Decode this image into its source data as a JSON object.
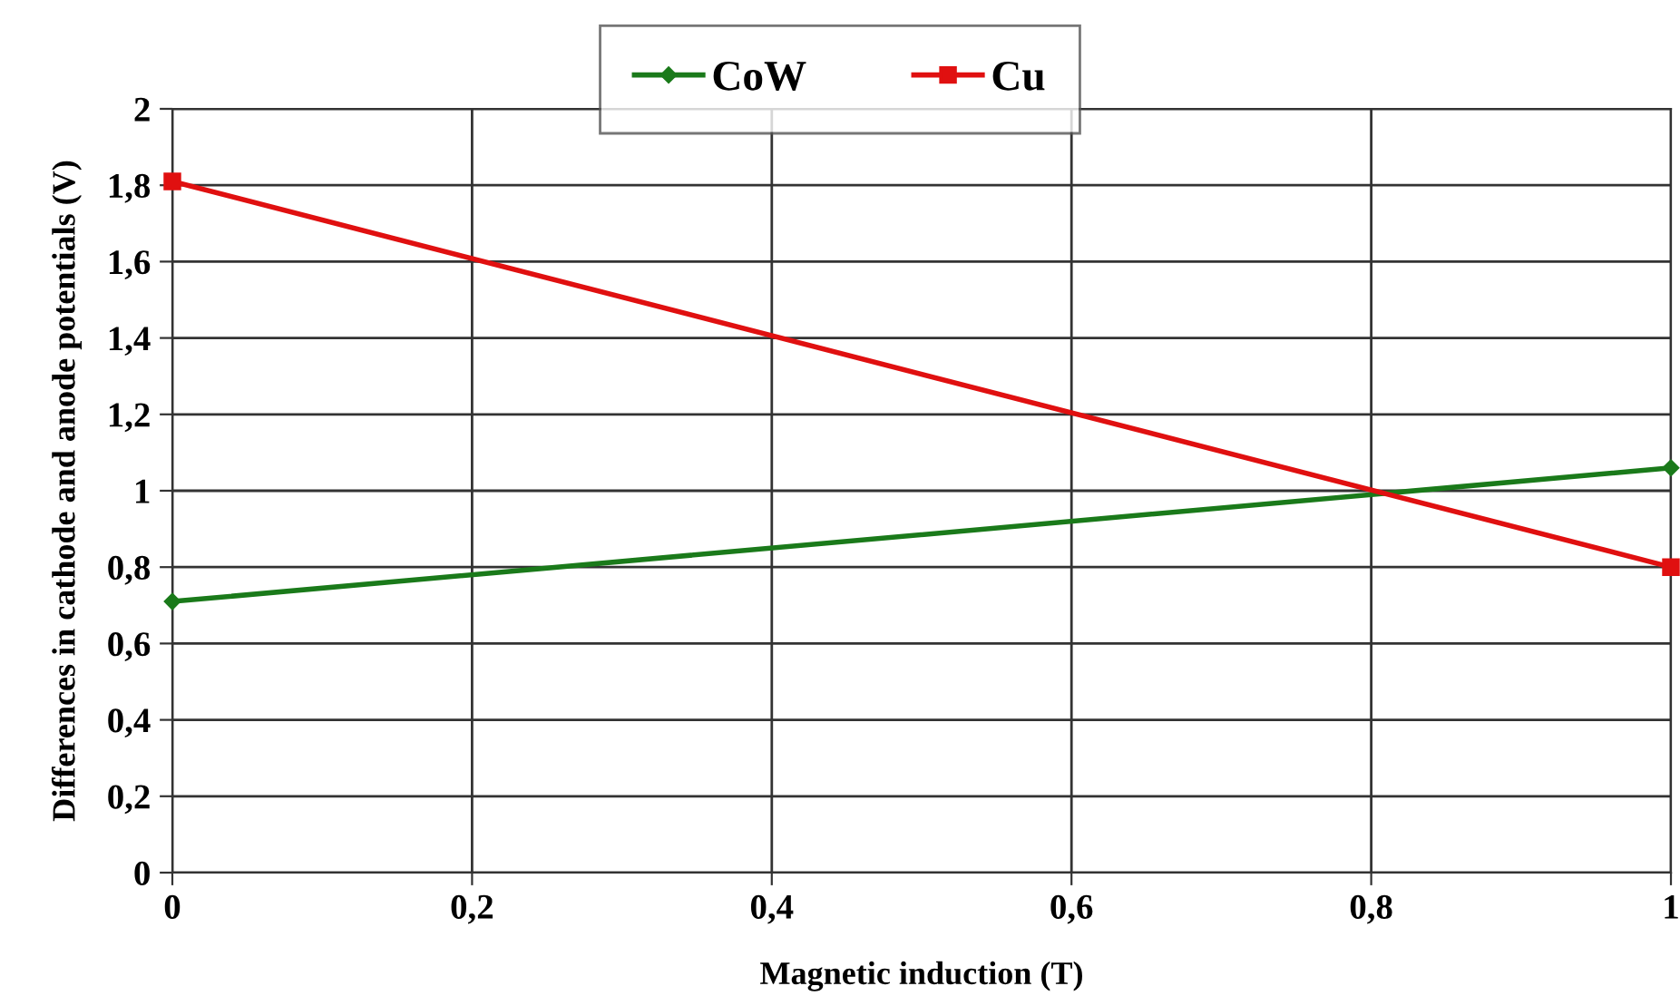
{
  "chart_data": {
    "type": "line",
    "xlabel": "Magnetic induction (T)",
    "ylabel": "Differences in cathode and anode potentials (V)",
    "x": [
      0,
      1
    ],
    "series": [
      {
        "name": "CoW",
        "color": "#1a7a1a",
        "values": [
          0.71,
          1.06
        ],
        "marker": "diamond"
      },
      {
        "name": "Cu",
        "color": "#e01010",
        "values": [
          1.81,
          0.8
        ],
        "marker": "square"
      }
    ],
    "xlim": [
      0,
      1
    ],
    "ylim": [
      0,
      2
    ],
    "xticks": [
      0,
      {
        "value": 0.2,
        "label": "0,2"
      },
      {
        "value": 0.4,
        "label": "0,4"
      },
      {
        "value": 0.6,
        "label": "0,6"
      },
      {
        "value": 0.8,
        "label": "0,8"
      },
      1
    ],
    "yticks": [
      0,
      {
        "value": 0.2,
        "label": "0,2"
      },
      {
        "value": 0.4,
        "label": "0,4"
      },
      {
        "value": 0.6,
        "label": "0,6"
      },
      {
        "value": 0.8,
        "label": "0,8"
      },
      1,
      {
        "value": 1.2,
        "label": "1,2"
      },
      {
        "value": 1.4,
        "label": "1,4"
      },
      {
        "value": 1.6,
        "label": "1,6"
      },
      {
        "value": 1.8,
        "label": "1,8"
      },
      2
    ],
    "grid": true,
    "legend": "top",
    "line_style": "solid"
  }
}
